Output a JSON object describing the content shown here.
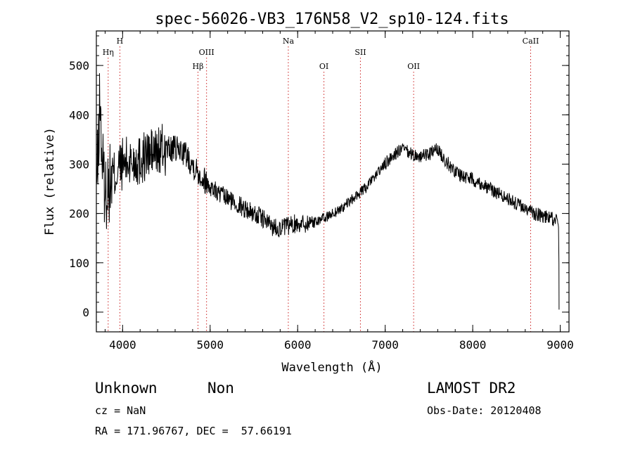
{
  "chart_data": {
    "type": "line",
    "title": "spec-56026-VB3_176N58_V2_sp10-124.fits",
    "xlabel": "Wavelength (Å)",
    "ylabel": "Flux (relative)",
    "xlim": [
      3700,
      9100
    ],
    "ylim": [
      -40,
      570
    ],
    "xticks": [
      4000,
      5000,
      6000,
      7000,
      8000,
      9000
    ],
    "yticks": [
      0,
      100,
      200,
      300,
      400,
      500
    ],
    "grid": false,
    "line_color": "#000000",
    "marker_color": "#cc2222",
    "lines": [
      {
        "label": "Hη",
        "wavelength": 3835
      },
      {
        "label": "H",
        "wavelength": 3969
      },
      {
        "label": "Hβ",
        "wavelength": 4861
      },
      {
        "label": "OIII",
        "wavelength": 4959
      },
      {
        "label": "Na",
        "wavelength": 5893
      },
      {
        "label": "OI",
        "wavelength": 6300
      },
      {
        "label": "SII",
        "wavelength": 6717
      },
      {
        "label": "OII",
        "wavelength": 7325
      },
      {
        "label": "CaII",
        "wavelength": 8662
      }
    ],
    "series": [
      {
        "x": [
          3700,
          3720,
          3740,
          3760,
          3780,
          3800,
          3850,
          3900,
          3950,
          4000,
          4100,
          4200,
          4300,
          4400,
          4500,
          4600,
          4700,
          4800,
          4900,
          5000,
          5100,
          5200,
          5300,
          5400,
          5500,
          5600,
          5700,
          5800,
          5900,
          6000,
          6100,
          6200,
          6300,
          6400,
          6500,
          6600,
          6700,
          6800,
          6900,
          7000,
          7100,
          7200,
          7300,
          7400,
          7500,
          7600,
          7700,
          7800,
          7900,
          8000,
          8100,
          8200,
          8300,
          8400,
          8500,
          8600,
          8700,
          8800,
          8900,
          8950,
          8980
        ],
        "y": [
          265,
          310,
          440,
          330,
          280,
          240,
          260,
          275,
          290,
          300,
          305,
          310,
          320,
          325,
          330,
          330,
          325,
          300,
          275,
          255,
          240,
          230,
          220,
          210,
          200,
          190,
          175,
          170,
          175,
          180,
          180,
          185,
          190,
          200,
          210,
          225,
          240,
          255,
          280,
          300,
          320,
          330,
          320,
          315,
          320,
          330,
          305,
          285,
          275,
          270,
          260,
          250,
          240,
          230,
          220,
          210,
          200,
          195,
          190,
          185,
          180
        ]
      }
    ]
  },
  "info": {
    "object_class": "Unknown",
    "subclass": "Non",
    "cz": "cz = NaN",
    "coords": "RA = 171.96767, DEC =  57.66191",
    "survey": "LAMOST DR2",
    "obs_date": "Obs-Date: 20120408"
  }
}
